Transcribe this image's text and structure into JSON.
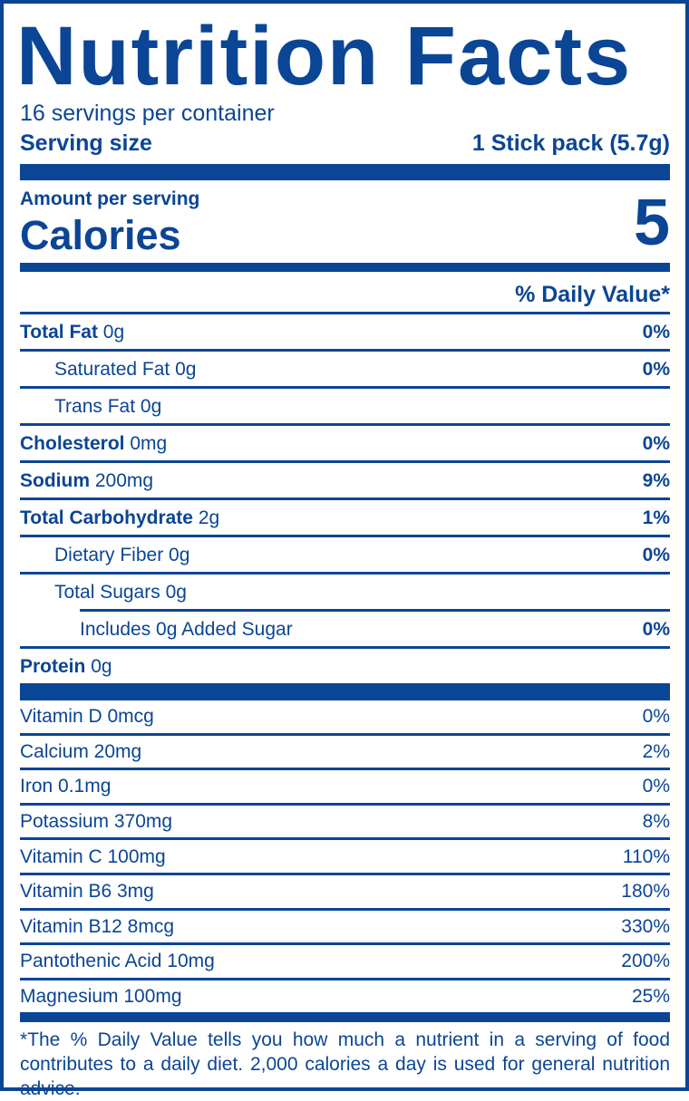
{
  "title": "Nutrition Facts",
  "servings_per_container": "16 servings per container",
  "serving_size": {
    "label": "Serving size",
    "value": "1 Stick pack (5.7g)"
  },
  "amount_per_serving": "Amount per serving",
  "calories": {
    "label": "Calories",
    "value": "5"
  },
  "daily_value_header": "% Daily Value*",
  "nutrients": [
    {
      "name": "Total Fat",
      "amount": "0g",
      "dv": "0%"
    },
    {
      "name": "Saturated Fat",
      "amount": "0g",
      "dv": "0%"
    },
    {
      "name": "Trans Fat",
      "amount": "0g",
      "dv": ""
    },
    {
      "name": "Cholesterol",
      "amount": "0mg",
      "dv": "0%"
    },
    {
      "name": "Sodium",
      "amount": "200mg",
      "dv": "9%"
    },
    {
      "name": "Total Carbohydrate",
      "amount": "2g",
      "dv": "1%"
    },
    {
      "name": "Dietary Fiber",
      "amount": "0g",
      "dv": "0%"
    },
    {
      "name": "Total Sugars",
      "amount": "0g",
      "dv": ""
    },
    {
      "name": "Includes 0g Added Sugar",
      "amount": "",
      "dv": "0%"
    },
    {
      "name": "Protein",
      "amount": "0g",
      "dv": ""
    }
  ],
  "vitamins": [
    {
      "text": "Vitamin D 0mcg",
      "dv": "0%"
    },
    {
      "text": "Calcium 20mg",
      "dv": "2%"
    },
    {
      "text": "Iron 0.1mg",
      "dv": "0%"
    },
    {
      "text": "Potassium 370mg",
      "dv": "8%"
    },
    {
      "text": "Vitamin C 100mg",
      "dv": "110%"
    },
    {
      "text": "Vitamin B6 3mg",
      "dv": "180%"
    },
    {
      "text": "Vitamin B12 8mcg",
      "dv": "330%"
    },
    {
      "text": "Pantothenic Acid 10mg",
      "dv": "200%"
    },
    {
      "text": "Magnesium 100mg",
      "dv": "25%"
    }
  ],
  "footnote": "*The % Daily Value tells you how much a nutrient in a serving of food contributes to a daily diet. 2,000 calories a day is used for general nutrition advice.",
  "colors": {
    "ink": "#0b4595",
    "background": "#ffffff"
  }
}
